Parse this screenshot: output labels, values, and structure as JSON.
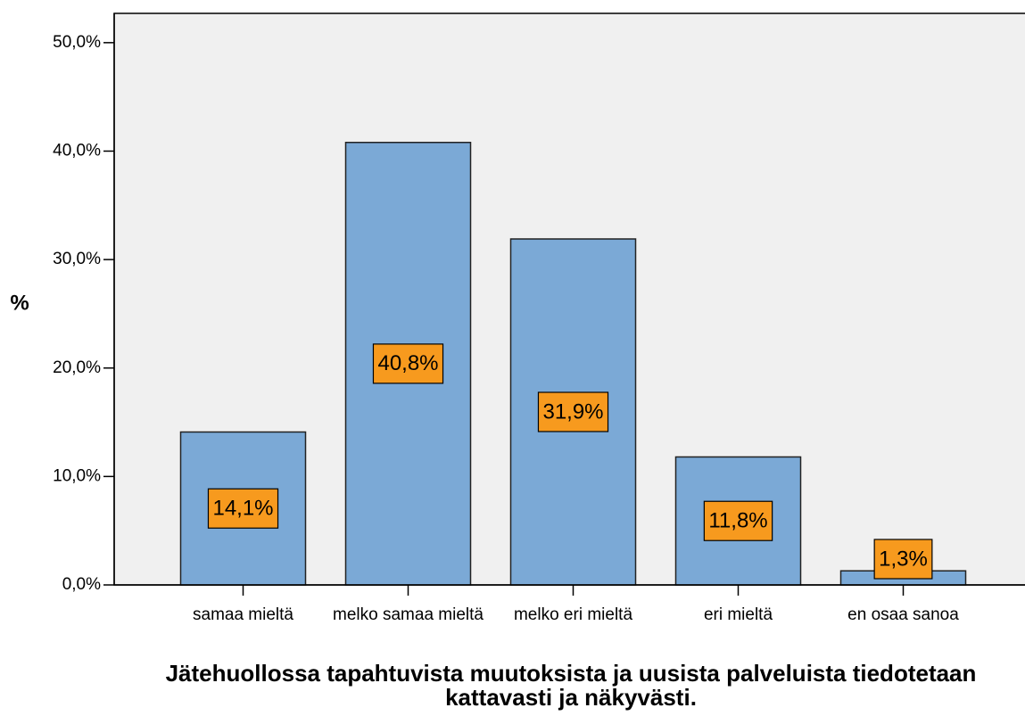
{
  "chart_data": {
    "type": "bar",
    "xlabel": "Jätehuollossa tapahtuvista muutoksista ja uusista palveluista tiedotetaan kattavasti ja näkyvästi.",
    "ylabel": "%",
    "categories": [
      "samaa mieltä",
      "melko samaa mieltä",
      "melko eri mieltä",
      "eri mieltä",
      "en osaa sanoa"
    ],
    "values": [
      14.1,
      40.8,
      31.9,
      11.8,
      1.3
    ],
    "value_labels": [
      "14,1%",
      "40,8%",
      "31,9%",
      "11,8%",
      "1,3%"
    ],
    "color": "#7ba9d6",
    "label_color": "#f79a1e",
    "ylim": [
      0,
      52.7
    ],
    "yticks": [
      {
        "value": 0,
        "label": "0,0%"
      },
      {
        "value": 10,
        "label": "10,0%"
      },
      {
        "value": 20,
        "label": "20,0%"
      },
      {
        "value": 30,
        "label": "30,0%"
      },
      {
        "value": 40,
        "label": "40,0%"
      },
      {
        "value": 50,
        "label": "50,0%"
      }
    ]
  }
}
